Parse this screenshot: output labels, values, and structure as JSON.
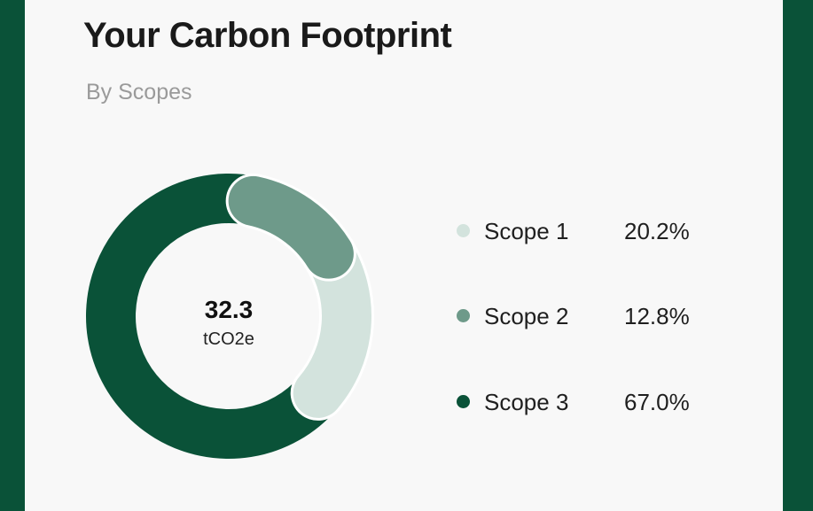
{
  "card": {
    "title": "Your Carbon Footprint",
    "subtitle": "By Scopes"
  },
  "chart_data": {
    "type": "pie",
    "center_value": "32.3",
    "center_unit": "tCO2e",
    "categories": [
      "Scope 1",
      "Scope 2",
      "Scope 3"
    ],
    "values": [
      20.2,
      12.8,
      67.0
    ],
    "labels": [
      "20.2%",
      "12.8%",
      "67.0%"
    ],
    "colors": [
      "#d3e3dd",
      "#6e9a8a",
      "#0a5238"
    ],
    "legend_position": "right"
  },
  "colors": {
    "background": "#0a5238",
    "card": "#f8f8f8"
  }
}
